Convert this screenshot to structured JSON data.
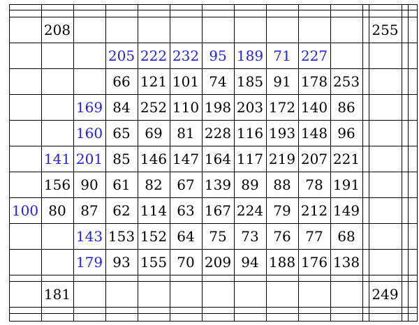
{
  "colors": {
    "default_text": "#000000",
    "highlight_text": "#1f1fe6",
    "grid_line": "#000000"
  },
  "table": {
    "rows": [
      [
        {
          "v": "208",
          "c": 1
        },
        {
          "v": "255",
          "c": 11
        }
      ],
      [
        {
          "v": "205",
          "c": 3,
          "hl": true
        },
        {
          "v": "222",
          "c": 4,
          "hl": true
        },
        {
          "v": "232",
          "c": 5,
          "hl": true
        },
        {
          "v": "95",
          "c": 6,
          "hl": true
        },
        {
          "v": "189",
          "c": 7,
          "hl": true
        },
        {
          "v": "71",
          "c": 8,
          "hl": true
        },
        {
          "v": "227",
          "c": 9,
          "hl": true
        }
      ],
      [
        {
          "v": "66",
          "c": 3
        },
        {
          "v": "121",
          "c": 4
        },
        {
          "v": "101",
          "c": 5
        },
        {
          "v": "74",
          "c": 6
        },
        {
          "v": "185",
          "c": 7
        },
        {
          "v": "91",
          "c": 8
        },
        {
          "v": "178",
          "c": 9
        },
        {
          "v": "253",
          "c": 10
        }
      ],
      [
        {
          "v": "169",
          "c": 2,
          "hl": true
        },
        {
          "v": "84",
          "c": 3
        },
        {
          "v": "252",
          "c": 4
        },
        {
          "v": "110",
          "c": 5
        },
        {
          "v": "198",
          "c": 6
        },
        {
          "v": "203",
          "c": 7
        },
        {
          "v": "172",
          "c": 8
        },
        {
          "v": "140",
          "c": 9
        },
        {
          "v": "86",
          "c": 10
        }
      ],
      [
        {
          "v": "160",
          "c": 2,
          "hl": true
        },
        {
          "v": "65",
          "c": 3
        },
        {
          "v": "69",
          "c": 4
        },
        {
          "v": "81",
          "c": 5
        },
        {
          "v": "228",
          "c": 6
        },
        {
          "v": "116",
          "c": 7
        },
        {
          "v": "193",
          "c": 8
        },
        {
          "v": "148",
          "c": 9
        },
        {
          "v": "96",
          "c": 10
        }
      ],
      [
        {
          "v": "141",
          "c": 1,
          "hl": true
        },
        {
          "v": "201",
          "c": 2,
          "hl": true
        },
        {
          "v": "85",
          "c": 3
        },
        {
          "v": "146",
          "c": 4
        },
        {
          "v": "147",
          "c": 5
        },
        {
          "v": "164",
          "c": 6
        },
        {
          "v": "117",
          "c": 7
        },
        {
          "v": "219",
          "c": 8
        },
        {
          "v": "207",
          "c": 9
        },
        {
          "v": "221",
          "c": 10
        }
      ],
      [
        {
          "v": "156",
          "c": 1
        },
        {
          "v": "90",
          "c": 2
        },
        {
          "v": "61",
          "c": 3
        },
        {
          "v": "82",
          "c": 4
        },
        {
          "v": "67",
          "c": 5
        },
        {
          "v": "139",
          "c": 6
        },
        {
          "v": "89",
          "c": 7
        },
        {
          "v": "88",
          "c": 8
        },
        {
          "v": "78",
          "c": 9
        },
        {
          "v": "191",
          "c": 10
        }
      ],
      [
        {
          "v": "100",
          "c": 0,
          "hl": true
        },
        {
          "v": "80",
          "c": 1
        },
        {
          "v": "87",
          "c": 2
        },
        {
          "v": "62",
          "c": 3
        },
        {
          "v": "114",
          "c": 4
        },
        {
          "v": "63",
          "c": 5
        },
        {
          "v": "167",
          "c": 6
        },
        {
          "v": "224",
          "c": 7
        },
        {
          "v": "79",
          "c": 8
        },
        {
          "v": "212",
          "c": 9
        },
        {
          "v": "149",
          "c": 10
        }
      ],
      [
        {
          "v": "143",
          "c": 2,
          "hl": true
        },
        {
          "v": "153",
          "c": 3
        },
        {
          "v": "152",
          "c": 4
        },
        {
          "v": "64",
          "c": 5
        },
        {
          "v": "75",
          "c": 6
        },
        {
          "v": "73",
          "c": 7
        },
        {
          "v": "76",
          "c": 8
        },
        {
          "v": "77",
          "c": 9
        },
        {
          "v": "68",
          "c": 10
        }
      ],
      [
        {
          "v": "179",
          "c": 2,
          "hl": true
        },
        {
          "v": "93",
          "c": 3
        },
        {
          "v": "155",
          "c": 4
        },
        {
          "v": "70",
          "c": 5
        },
        {
          "v": "209",
          "c": 6
        },
        {
          "v": "94",
          "c": 7
        },
        {
          "v": "188",
          "c": 8
        },
        {
          "v": "176",
          "c": 9
        },
        {
          "v": "138",
          "c": 10
        }
      ],
      [
        {
          "v": "181",
          "c": 1
        },
        {
          "v": "249",
          "c": 11
        }
      ]
    ]
  }
}
